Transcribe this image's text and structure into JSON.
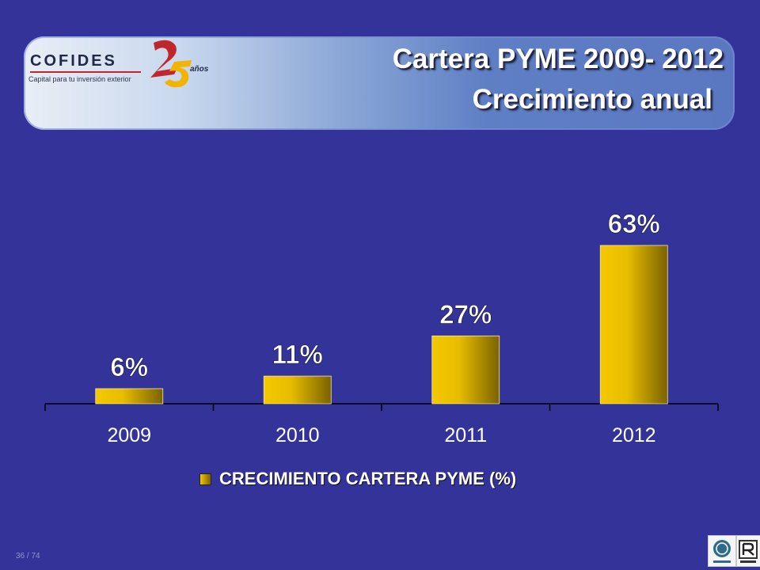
{
  "title": {
    "line1": "Cartera PYME 2009- 2012",
    "line2": "Crecimiento anual"
  },
  "logo": {
    "brand": "COFIDES",
    "tagline": "Capital para tu inversión exterior",
    "anniversary": "años"
  },
  "footer": {
    "page": "36 / 74"
  },
  "colors": {
    "background": "#333399",
    "bar_light": "#f4c800",
    "bar_dark": "#7a6200",
    "text": "#ffffff"
  },
  "chart_data": {
    "type": "bar",
    "categories": [
      "2009",
      "2010",
      "2011",
      "2012"
    ],
    "series": [
      {
        "name": "CRECIMIENTO CARTERA PYME (%)",
        "values": [
          6,
          11,
          27,
          63
        ]
      }
    ],
    "data_labels": [
      "6%",
      "11%",
      "27%",
      "63%"
    ],
    "ylim": [
      0,
      63
    ],
    "legend": "bottom",
    "grid": false
  }
}
